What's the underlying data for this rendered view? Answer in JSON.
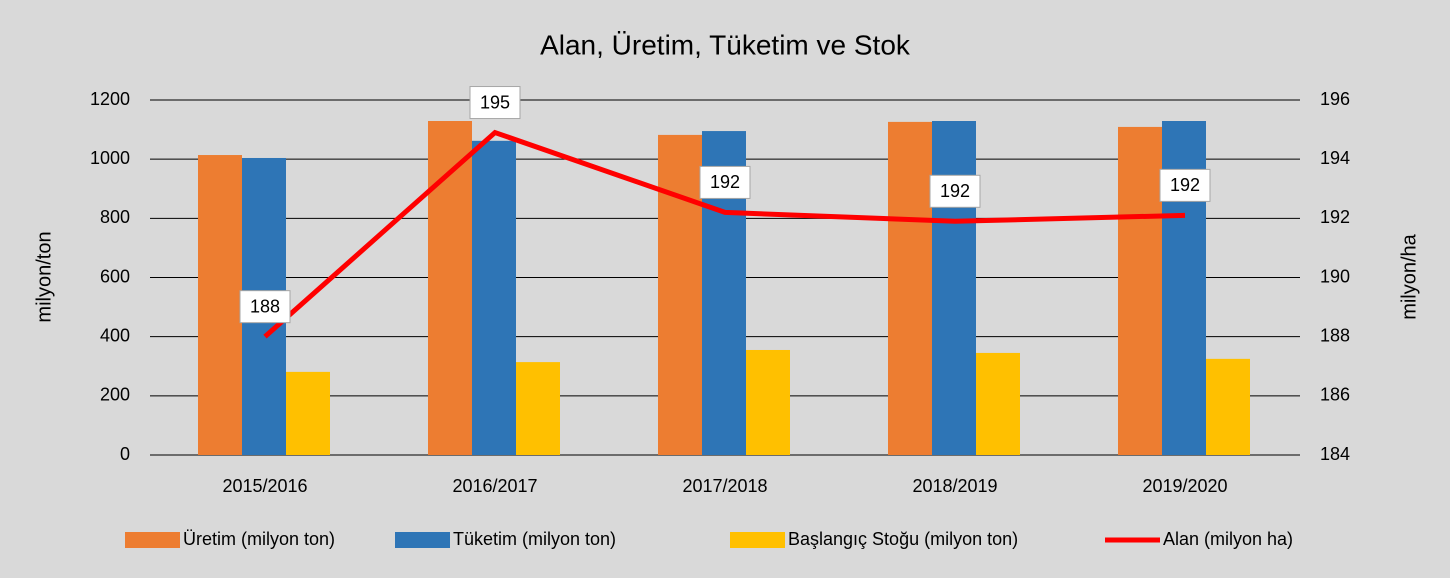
{
  "chart_data": {
    "type": "bar-line",
    "title": "Alan, Üretim, Tüketim ve Stok",
    "ylabel": "milyon/ton",
    "y2label": "milyon/ha",
    "categories": [
      "2015/2016",
      "2016/2017",
      "2017/2018",
      "2018/2019",
      "2019/2020"
    ],
    "series": [
      {
        "name": "Üretim (milyon ton)",
        "color": "#ed7d31",
        "type": "bar",
        "values": [
          1014,
          1129,
          1082,
          1126,
          1109
        ]
      },
      {
        "name": "Tüketim (milyon ton)",
        "color": "#2e75b6",
        "type": "bar",
        "values": [
          1004,
          1062,
          1095,
          1129,
          1129
        ]
      },
      {
        "name": "Başlangıç Stoğu (milyon ton)",
        "color": "#ffc000",
        "type": "bar",
        "values": [
          281,
          314,
          355,
          345,
          325
        ]
      },
      {
        "name": "Alan (milyon ha)",
        "color": "#ff0000",
        "type": "line",
        "axis": "y2",
        "values": [
          188.0,
          194.9,
          192.2,
          191.9,
          192.1
        ],
        "value_labels": [
          "188",
          "195",
          "192",
          "192",
          "192"
        ]
      }
    ],
    "ylim": [
      0,
      1200
    ],
    "yticks": [
      0,
      200,
      400,
      600,
      800,
      1000,
      1200
    ],
    "y2lim": [
      184,
      196
    ],
    "y2ticks": [
      184,
      186,
      188,
      190,
      192,
      194,
      196
    ],
    "grid": true,
    "legend": "bottom"
  }
}
